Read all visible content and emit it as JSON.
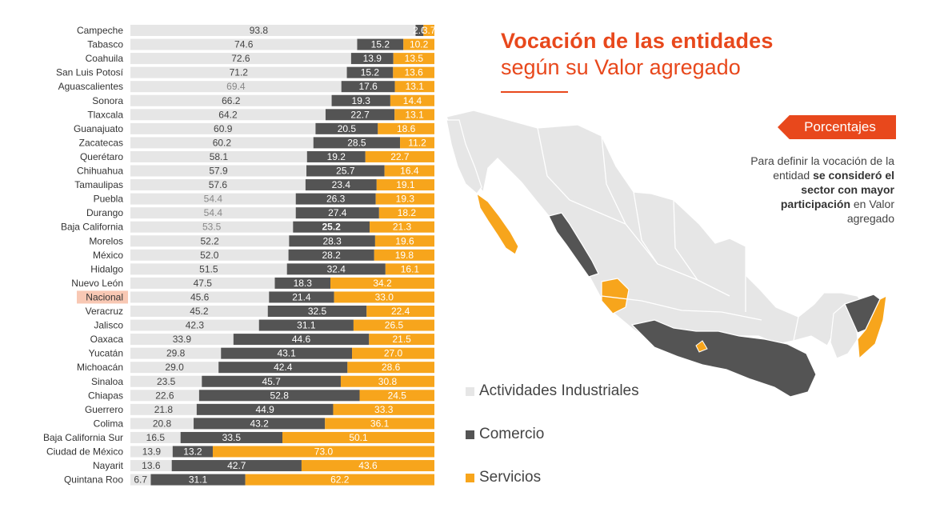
{
  "title": {
    "line1": "Vocación de las entidades",
    "line2": "según su Valor agregado"
  },
  "badge": "Porcentajes",
  "note": {
    "p1": "Para definir la vocación de la entidad ",
    "b1": "se consideró el sector con mayor participación",
    "p2": " en Valor agregado"
  },
  "colors": {
    "industriales": "#e6e6e6",
    "comercio": "#545454",
    "servicios": "#f7a51c",
    "accent": "#e8481c",
    "nacional_highlight": "#f8c8b4"
  },
  "chart_data": {
    "type": "bar",
    "stacked": true,
    "orientation": "horizontal",
    "units": "%",
    "xlim": [
      0,
      100
    ],
    "categories": [
      "Campeche",
      "Tabasco",
      "Coahuila",
      "San Luis Potosí",
      "Aguascalientes",
      "Sonora",
      "Tlaxcala",
      "Guanajuato",
      "Zacatecas",
      "Querétaro",
      "Chihuahua",
      "Tamaulipas",
      "Puebla",
      "Durango",
      "Baja California",
      "Morelos",
      "México",
      "Hidalgo",
      "Nuevo León",
      "Nacional",
      "Veracruz",
      "Jalisco",
      "Oaxaca",
      "Yucatán",
      "Michoacán",
      "Sinaloa",
      "Chiapas",
      "Guerrero",
      "Colima",
      "Baja California Sur",
      "Ciudad de México",
      "Nayarit",
      "Quintana Roo"
    ],
    "highlight_category": "Nacional",
    "series": [
      {
        "name": "Actividades Industriales",
        "values": [
          93.8,
          74.6,
          72.6,
          71.2,
          69.4,
          66.2,
          64.2,
          60.9,
          60.2,
          58.1,
          57.9,
          57.6,
          54.4,
          54.4,
          53.5,
          52.2,
          52.0,
          51.5,
          47.5,
          45.6,
          45.2,
          42.3,
          33.9,
          29.8,
          29.0,
          23.5,
          22.6,
          21.8,
          20.8,
          16.5,
          13.9,
          13.6,
          6.7
        ]
      },
      {
        "name": "Comercio",
        "values": [
          2.6,
          15.2,
          13.9,
          15.2,
          17.6,
          19.3,
          22.7,
          20.5,
          28.5,
          19.2,
          25.7,
          23.4,
          26.3,
          27.4,
          25.2,
          28.3,
          28.2,
          32.4,
          18.3,
          21.4,
          32.5,
          31.1,
          44.6,
          43.1,
          42.4,
          45.7,
          52.8,
          44.9,
          43.2,
          33.5,
          13.2,
          42.7,
          31.1
        ]
      },
      {
        "name": "Servicios",
        "values": [
          3.7,
          10.2,
          13.5,
          13.6,
          13.1,
          14.4,
          13.1,
          18.6,
          11.2,
          22.7,
          16.4,
          19.1,
          19.3,
          18.2,
          21.3,
          19.6,
          19.8,
          16.1,
          34.2,
          33.0,
          22.4,
          26.5,
          21.5,
          27.0,
          28.6,
          30.8,
          24.5,
          33.3,
          36.1,
          50.1,
          73.0,
          43.6,
          62.2
        ]
      }
    ],
    "legend": [
      "Actividades Industriales",
      "Comercio",
      "Servicios"
    ],
    "legend_position": "center-right"
  }
}
